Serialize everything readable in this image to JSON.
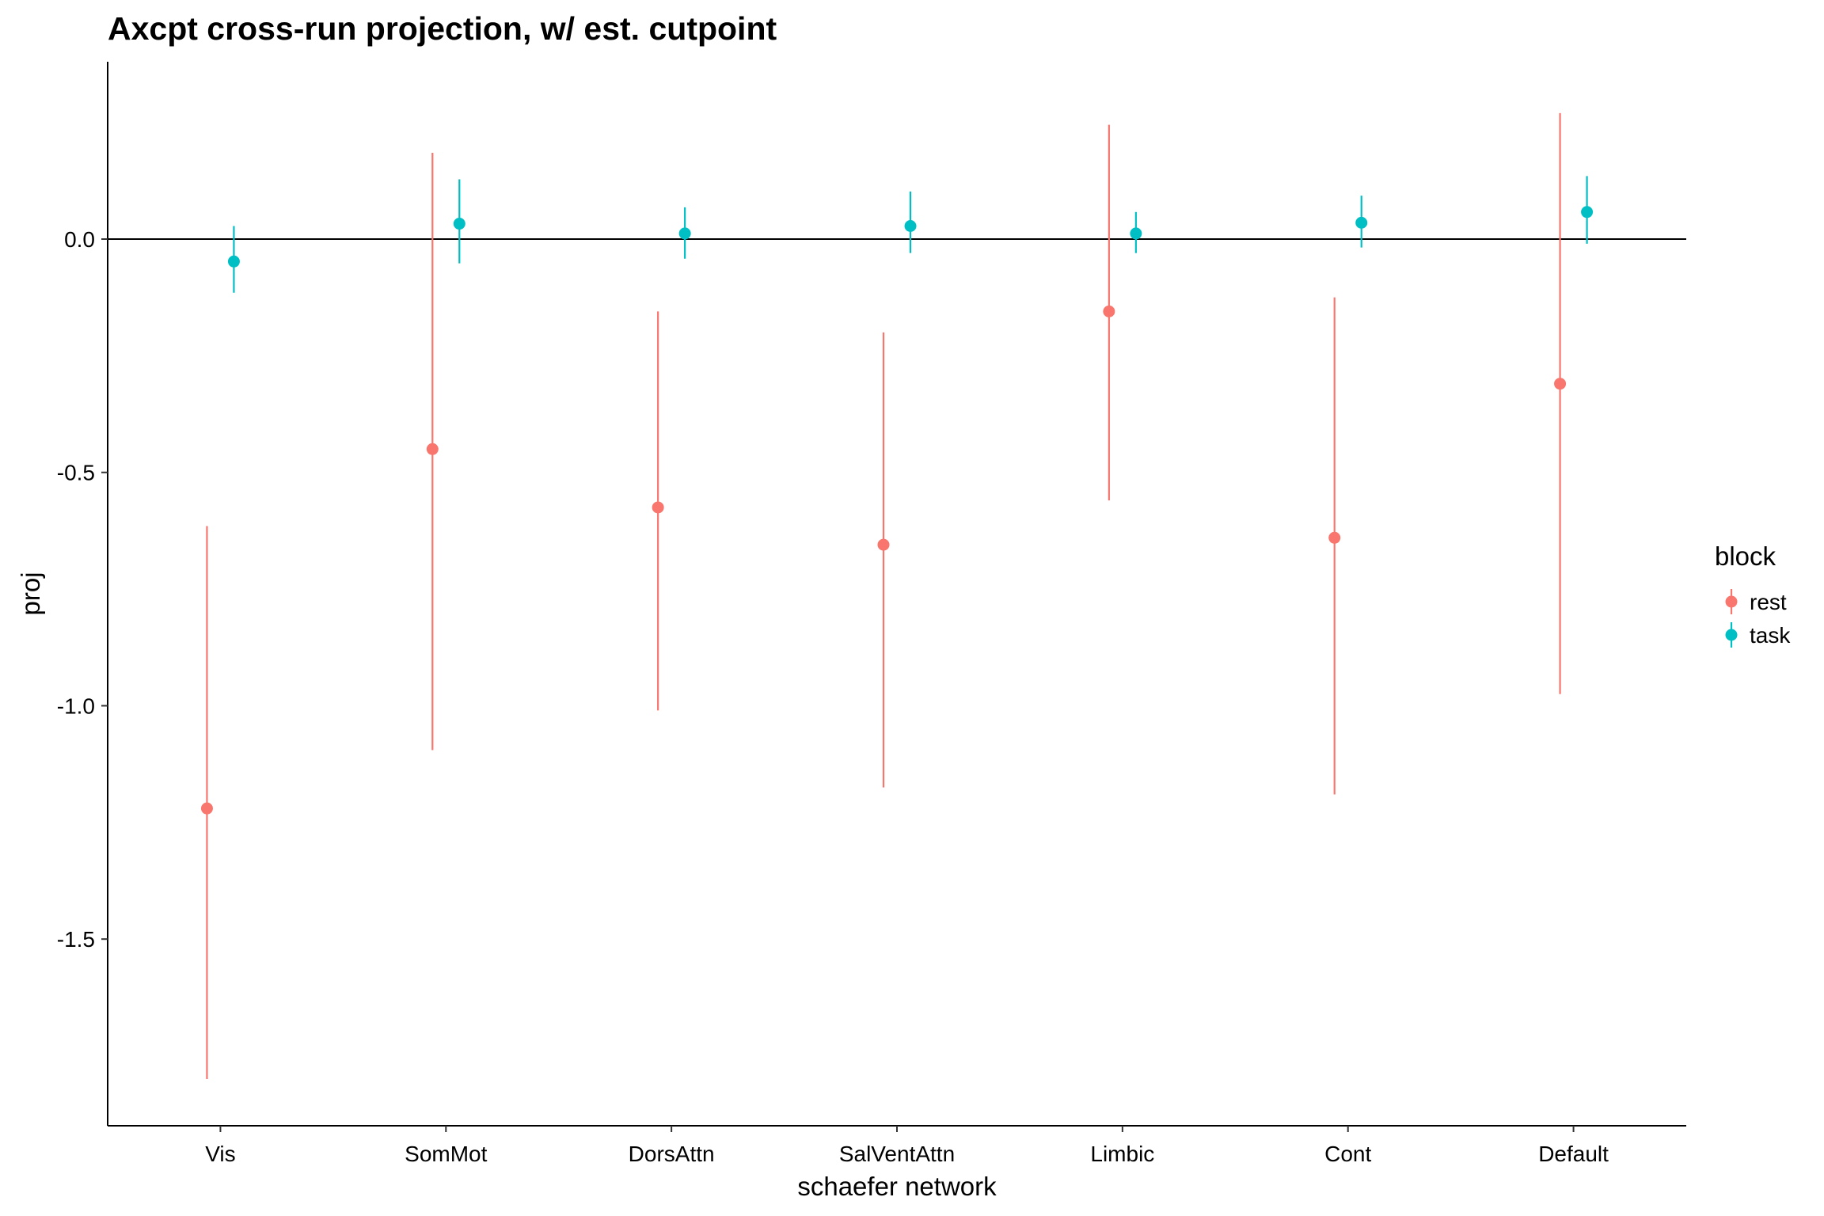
{
  "chart_data": {
    "type": "scatter",
    "subtype": "pointrange",
    "title": "Axcpt cross-run projection, w/ est. cutpoint",
    "xlabel": "schaefer network",
    "ylabel": "proj",
    "categories": [
      "Vis",
      "SomMot",
      "DorsAttn",
      "SalVentAttn",
      "Limbic",
      "Cont",
      "Default"
    ],
    "ylim": [
      -1.9,
      0.38
    ],
    "yticks": [
      0.0,
      -0.5,
      -1.0,
      -1.5
    ],
    "ytick_labels": [
      "0.0",
      "-0.5",
      "-1.0",
      "-1.5"
    ],
    "reference_line_y": 0,
    "grid": false,
    "legend": {
      "title": "block",
      "position": "right"
    },
    "series": [
      {
        "name": "rest",
        "color": "#F8766D",
        "values": [
          -1.22,
          -0.45,
          -0.575,
          -0.655,
          -0.155,
          -0.64,
          -0.31
        ],
        "lower": [
          -1.8,
          -1.095,
          -1.01,
          -1.175,
          -0.56,
          -1.19,
          -0.975
        ],
        "upper": [
          -0.615,
          0.185,
          -0.155,
          -0.2,
          0.245,
          -0.125,
          0.27
        ]
      },
      {
        "name": "task",
        "color": "#00BFC4",
        "values": [
          -0.048,
          0.033,
          0.012,
          0.028,
          0.012,
          0.035,
          0.058
        ],
        "lower": [
          -0.115,
          -0.052,
          -0.042,
          -0.03,
          -0.03,
          -0.018,
          -0.01
        ],
        "upper": [
          0.028,
          0.128,
          0.068,
          0.102,
          0.058,
          0.093,
          0.135
        ]
      }
    ]
  }
}
